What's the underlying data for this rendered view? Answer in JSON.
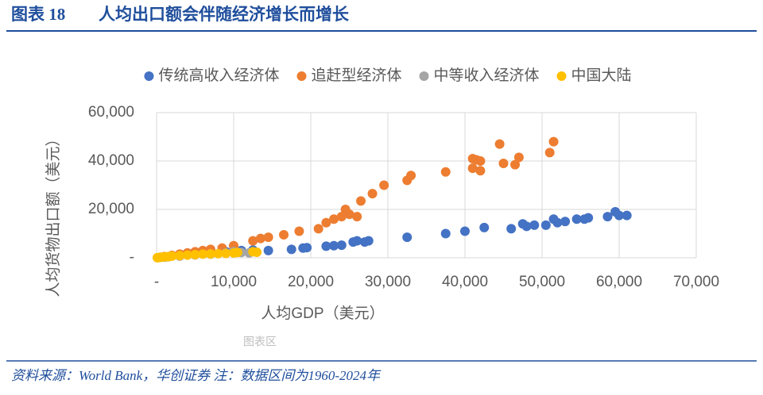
{
  "figure_label": "图表 18",
  "figure_title": "人均出口额会伴随经济增长而增长",
  "source": "资料来源：World Bank，华创证券    注：数据区间为1960-2024年",
  "watermark": "图表区",
  "chart_data": {
    "type": "scatter",
    "x_label": "人均GDP（美元）",
    "y_label": "人均货物出口额（美元）",
    "xlim": [
      0,
      70000
    ],
    "ylim": [
      0,
      60000
    ],
    "xticks": [
      {
        "value": 0,
        "label": "-"
      },
      {
        "value": 10000,
        "label": "10,000"
      },
      {
        "value": 20000,
        "label": "20,000"
      },
      {
        "value": 30000,
        "label": "30,000"
      },
      {
        "value": 40000,
        "label": "40,000"
      },
      {
        "value": 50000,
        "label": "50,000"
      },
      {
        "value": 60000,
        "label": "60,000"
      },
      {
        "value": 70000,
        "label": "70,000"
      }
    ],
    "yticks": [
      {
        "value": 0,
        "label": "-"
      },
      {
        "value": 20000,
        "label": "20,000"
      },
      {
        "value": 40000,
        "label": "40,000"
      },
      {
        "value": 60000,
        "label": "60,000"
      }
    ],
    "grid": true,
    "legend": "top",
    "series": [
      {
        "name": "传统高收入经济体",
        "color": "#4472c4",
        "x": [
          1000,
          3000,
          5000,
          7000,
          9000,
          11000,
          12500,
          14500,
          17500,
          19000,
          19500,
          22000,
          23000,
          24000,
          25500,
          26000,
          27000,
          27500,
          32500,
          37500,
          40000,
          42500,
          46000,
          47500,
          48000,
          49000,
          50500,
          51500,
          52000,
          53000,
          54500,
          55500,
          56000,
          58500,
          59500,
          60000,
          61000
        ],
        "values": [
          300,
          800,
          1500,
          2000,
          2500,
          3000,
          3200,
          3000,
          3500,
          4000,
          4200,
          4800,
          5000,
          5200,
          6500,
          7000,
          6500,
          7000,
          8500,
          10000,
          11000,
          12500,
          12000,
          14000,
          13000,
          13500,
          13500,
          16000,
          14500,
          15000,
          16000,
          16000,
          16500,
          17000,
          19000,
          17500,
          17500
        ]
      },
      {
        "name": "追赶型经济体",
        "color": "#ed7d31",
        "x": [
          1000,
          2000,
          3000,
          4000,
          5000,
          6000,
          7000,
          8500,
          10000,
          12500,
          13500,
          14500,
          16500,
          18500,
          21000,
          22000,
          23000,
          24000,
          24500,
          25000,
          26000,
          26500,
          28000,
          29500,
          32500,
          33000,
          37500,
          42000,
          41000,
          41000,
          41500,
          42000,
          44500,
          45000,
          46500,
          47000,
          51000,
          51500
        ],
        "values": [
          500,
          1000,
          1500,
          2000,
          2500,
          3000,
          3500,
          4000,
          5000,
          7000,
          8000,
          8500,
          9500,
          11000,
          12000,
          14500,
          16000,
          17000,
          20000,
          18000,
          17000,
          23500,
          26500,
          30000,
          32000,
          34000,
          35500,
          36000,
          37000,
          41000,
          40500,
          40000,
          47000,
          39000,
          38500,
          41500,
          43500,
          48000
        ]
      },
      {
        "name": "中等收入经济体",
        "color": "#a5a5a5",
        "x": [
          500,
          1500,
          3000,
          5000,
          7000,
          9000,
          10000,
          11000,
          12000
        ],
        "values": [
          200,
          400,
          700,
          1200,
          1500,
          2000,
          2500,
          2200,
          2000
        ]
      },
      {
        "name": "中国大陆",
        "color": "#ffc000",
        "x": [
          100,
          300,
          500,
          800,
          1200,
          1600,
          2000,
          3000,
          4000,
          5000,
          6000,
          7000,
          8000,
          9000,
          10000,
          10500,
          12500,
          13000
        ],
        "values": [
          50,
          100,
          200,
          300,
          400,
          500,
          700,
          900,
          1100,
          1300,
          1500,
          1600,
          1700,
          1800,
          2000,
          2200,
          2500,
          2300
        ]
      }
    ]
  }
}
